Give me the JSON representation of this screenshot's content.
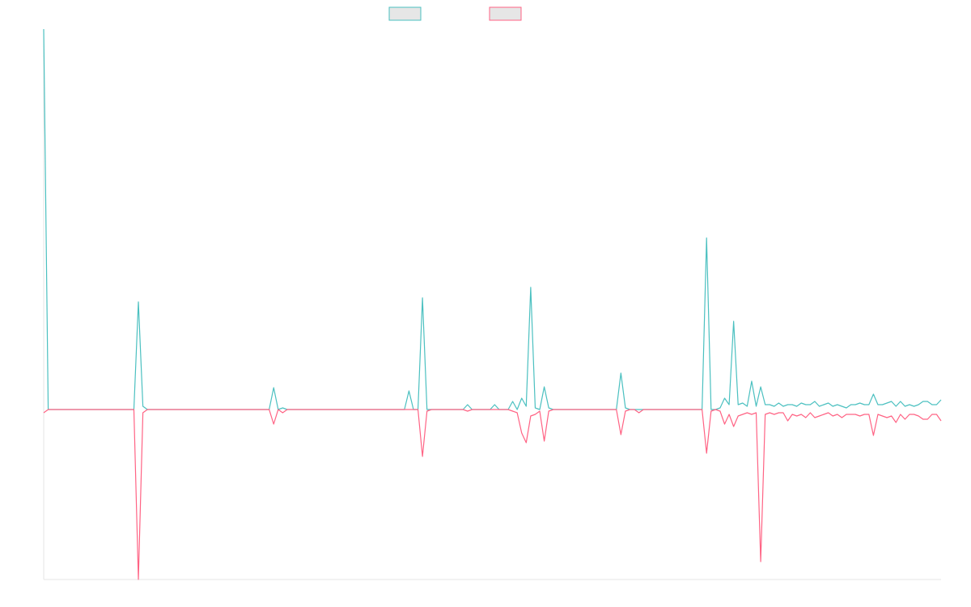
{
  "chart_data": {
    "type": "line",
    "categories": [
      null,
      null,
      null,
      null,
      null,
      null,
      null,
      null,
      null,
      null,
      null,
      null,
      null,
      null,
      null,
      null,
      null,
      null,
      null,
      null,
      null,
      null,
      null,
      null,
      null,
      null,
      null,
      null,
      null,
      null,
      null,
      null,
      null,
      null,
      null,
      null,
      null,
      null,
      null,
      null,
      null,
      null,
      null,
      null,
      null,
      null,
      null,
      null,
      null,
      null,
      null,
      null,
      null,
      null,
      null,
      null,
      null,
      null,
      null,
      null,
      null,
      null,
      null,
      null,
      null,
      null,
      null,
      null,
      null,
      null,
      null,
      null,
      null,
      null,
      null,
      null,
      null,
      null,
      null,
      null,
      null,
      null,
      null,
      null,
      null,
      null,
      null,
      null,
      null,
      null,
      null,
      null,
      null,
      null,
      null,
      null,
      null,
      null,
      null,
      null,
      null,
      null,
      null,
      null,
      null,
      null,
      null,
      null,
      null,
      null,
      null,
      null,
      null,
      null,
      null,
      null,
      null,
      null,
      null,
      null,
      null,
      null,
      null,
      null,
      null,
      null,
      null,
      null,
      null,
      null,
      null,
      null,
      null,
      null,
      null,
      null,
      null,
      null,
      null,
      null,
      null,
      null,
      null,
      null,
      null,
      null,
      null,
      null,
      null,
      null,
      null,
      null,
      null,
      null,
      null,
      null,
      null,
      null,
      null,
      null,
      null,
      null,
      null,
      null,
      null,
      null,
      null,
      null,
      null,
      null,
      null,
      null,
      null,
      null,
      null,
      null,
      null,
      null,
      null,
      null,
      null,
      null,
      null,
      null,
      null,
      null,
      null,
      null,
      null,
      null,
      null,
      null,
      null,
      null,
      null,
      null,
      null,
      null,
      null,
      null
    ],
    "series": [
      {
        "color": "#4bc0c0",
        "values": [
          235,
          0,
          0,
          0,
          0,
          0,
          0,
          0,
          0,
          0,
          0,
          0,
          0,
          0,
          0,
          0,
          0,
          0,
          0,
          0,
          0,
          66.5,
          2,
          0,
          0,
          0,
          0,
          0,
          0,
          0,
          0,
          0,
          0,
          0,
          0,
          0,
          0,
          0,
          0,
          0,
          0,
          0,
          0,
          0,
          0,
          0,
          0,
          0,
          0,
          0,
          0,
          13.5,
          0,
          1,
          0,
          0,
          0,
          0,
          0,
          0,
          0,
          0,
          0,
          0,
          0,
          0,
          0,
          0,
          0,
          0,
          0,
          0,
          0,
          0,
          0,
          0,
          0,
          0,
          0,
          0,
          0,
          11.5,
          0,
          0,
          69,
          0,
          0,
          0,
          0,
          0,
          0,
          0,
          0,
          0,
          3,
          0,
          0,
          0,
          0,
          0,
          3,
          0,
          0,
          0,
          5,
          0,
          7,
          2,
          75.5,
          1,
          0,
          14,
          1,
          0,
          0,
          0,
          0,
          0,
          0,
          0,
          0,
          0,
          0,
          0,
          0,
          0,
          0,
          0,
          22.5,
          1,
          0,
          0,
          0,
          0,
          0,
          0,
          0,
          0,
          0,
          0,
          0,
          0,
          0,
          0,
          0,
          0,
          0,
          106,
          0,
          0,
          1,
          7,
          3,
          54.5,
          3,
          4,
          2,
          17.5,
          2,
          14,
          3,
          3,
          2,
          4,
          2,
          3,
          3,
          2,
          4,
          3,
          3,
          5,
          2,
          3,
          4,
          2,
          3,
          2,
          1,
          3,
          3,
          4,
          3,
          3,
          9.5,
          3,
          3,
          4,
          5,
          2,
          5,
          2,
          3,
          2,
          3,
          5,
          5,
          3,
          3,
          6
        ]
      },
      {
        "color": "#ff6384",
        "values": [
          -2,
          0,
          0,
          0,
          0,
          0,
          0,
          0,
          0,
          0,
          0,
          0,
          0,
          0,
          0,
          0,
          0,
          0,
          0,
          0,
          0,
          -105,
          -2,
          0,
          0,
          0,
          0,
          0,
          0,
          0,
          0,
          0,
          0,
          0,
          0,
          0,
          0,
          0,
          0,
          0,
          0,
          0,
          0,
          0,
          0,
          0,
          0,
          0,
          0,
          0,
          0,
          -9,
          0,
          -2,
          0,
          0,
          0,
          0,
          0,
          0,
          0,
          0,
          0,
          0,
          0,
          0,
          0,
          0,
          0,
          0,
          0,
          0,
          0,
          0,
          0,
          0,
          0,
          0,
          0,
          0,
          0,
          0,
          0,
          0,
          -29,
          -1,
          0,
          0,
          0,
          0,
          0,
          0,
          0,
          0,
          -1,
          0,
          0,
          0,
          0,
          0,
          0,
          0,
          0,
          0,
          -1,
          -2,
          -14.5,
          -20.5,
          -4,
          -3,
          -1,
          -19.5,
          -1,
          0,
          0,
          0,
          0,
          0,
          0,
          0,
          0,
          0,
          0,
          0,
          0,
          0,
          0,
          0,
          -15.5,
          -1,
          0,
          0,
          -2,
          0,
          0,
          0,
          0,
          0,
          0,
          0,
          0,
          0,
          0,
          0,
          0,
          0,
          0,
          -27,
          -1,
          0,
          -1,
          -9,
          -3,
          -10.5,
          -4,
          -3,
          -2,
          -3,
          -2,
          -94,
          -3,
          -2,
          -3,
          -2,
          -2,
          -7,
          -3,
          -4,
          -3,
          -5,
          -2,
          -5,
          -4,
          -3,
          -2,
          -4,
          -3,
          -5,
          -3,
          -3,
          -3,
          -4,
          -3,
          -3,
          -16,
          -3,
          -4,
          -5,
          -4,
          -8,
          -3,
          -6,
          -3,
          -3,
          -4,
          -6,
          -6,
          -3,
          -3,
          -7
        ]
      }
    ],
    "ylim": [
      -105,
      235
    ]
  }
}
